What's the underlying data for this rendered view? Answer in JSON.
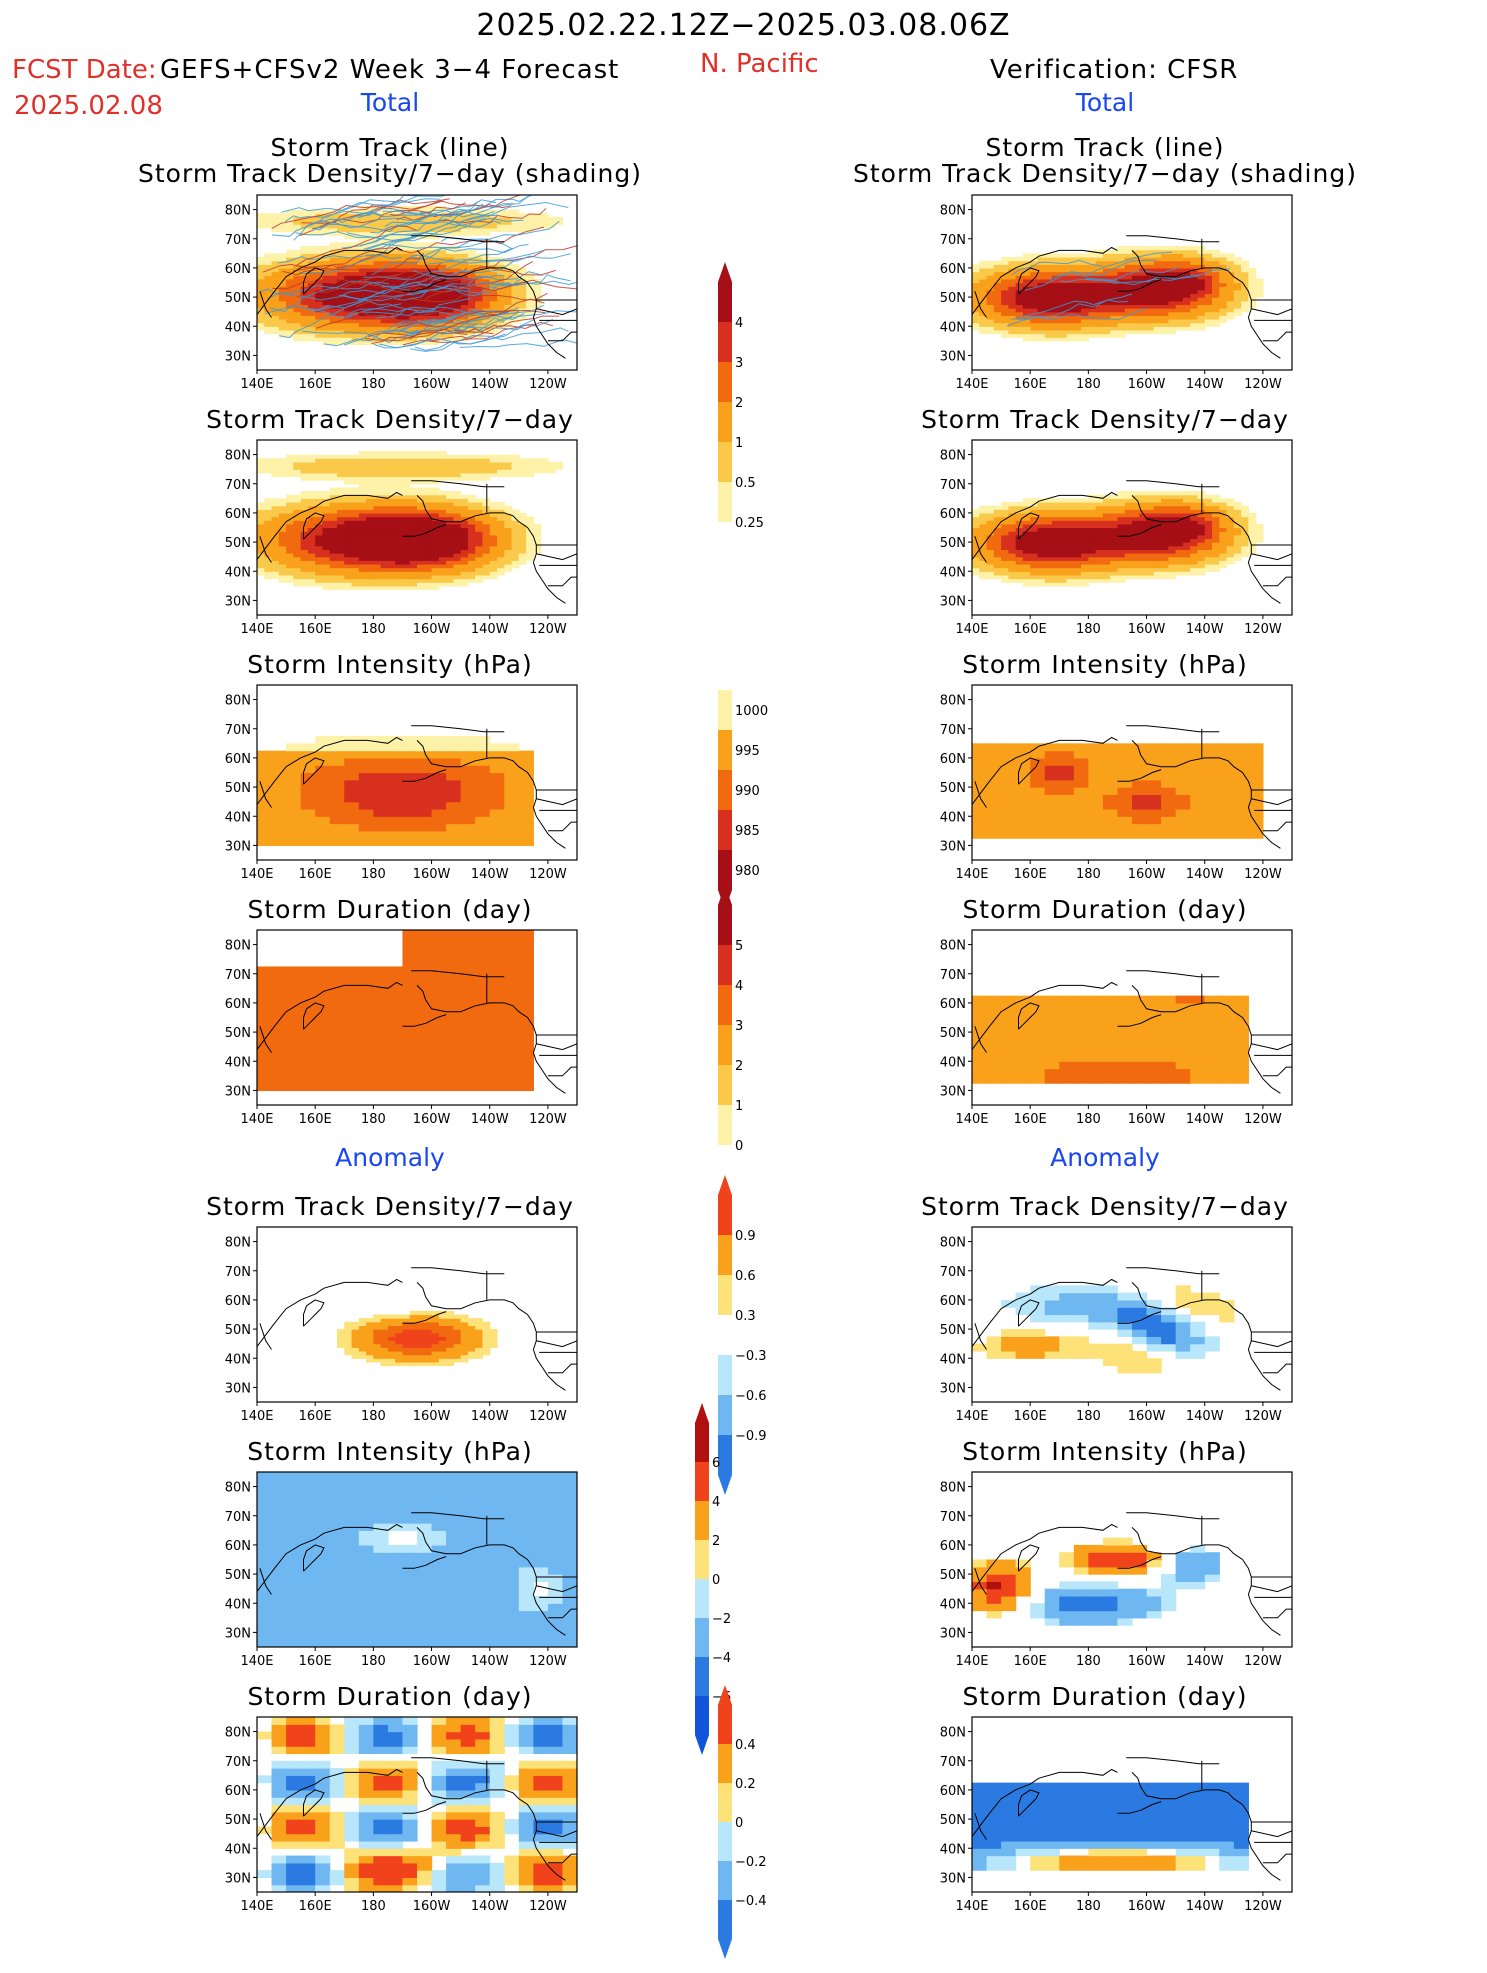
{
  "header": {
    "time_range": "2025.02.22.12Z−2025.03.08.06Z",
    "fcst_label": "FCST Date:",
    "model": "GEFS+CFSv2 Week 3−4 Forecast",
    "fcst_date": "2025.02.08",
    "region": "N. Pacific",
    "verification": "Verification: CFSR"
  },
  "sections": {
    "total_left": "Total",
    "total_right": "Total",
    "anomaly_left": "Anomaly",
    "anomaly_right": "Anomaly"
  },
  "axes": {
    "lon_ticks": [
      "140E",
      "160E",
      "180",
      "160W",
      "140W",
      "120W"
    ],
    "lat_ticks": [
      "80N",
      "70N",
      "60N",
      "50N",
      "40N",
      "30N"
    ]
  },
  "panels": {
    "track_left_l1": "Storm Track (line)",
    "track_left_l2": "Storm Track Density/7−day (shading)",
    "track_right_l1": "Storm Track (line)",
    "track_right_l2": "Storm Track Density/7−day (shading)",
    "density_left": "Storm Track Density/7−day",
    "density_right": "Storm Track Density/7−day",
    "intensity_left": "Storm Intensity (hPa)",
    "intensity_right": "Storm Intensity (hPa)",
    "duration_left": "Storm Duration (day)",
    "duration_right": "Storm Duration (day)",
    "anom_density_left": "Storm Track Density/7−day",
    "anom_density_right": "Storm Track Density/7−day",
    "anom_intensity_left": "Storm Intensity (hPa)",
    "anom_intensity_right": "Storm Intensity (hPa)",
    "anom_duration_left": "Storm Duration (day)",
    "anom_duration_right": "Storm Duration (day)"
  },
  "colorbars": {
    "density": {
      "labels": [
        "4",
        "3",
        "2",
        "1",
        "0.5",
        "0.25"
      ],
      "colors": [
        "#a50f15",
        "#d7301f",
        "#f26a0f",
        "#f9a11b",
        "#fbc94a",
        "#fdf2a8"
      ]
    },
    "intensity": {
      "labels": [
        "1000",
        "995",
        "990",
        "985",
        "980"
      ],
      "colors": [
        "#fdf2a8",
        "#f9a11b",
        "#f26a0f",
        "#d7301f",
        "#a50f15"
      ]
    },
    "duration": {
      "labels": [
        "5",
        "4",
        "3",
        "2",
        "1",
        "0"
      ],
      "colors": [
        "#a50f15",
        "#d7301f",
        "#f26a0f",
        "#f9a11b",
        "#fbc94a",
        "#fdf2a8"
      ]
    },
    "anom_density": {
      "labels": [
        "0.9",
        "0.6",
        "0.3",
        "−0.3",
        "−0.6",
        "−0.9"
      ],
      "colors": [
        "#f0431c",
        "#f9a11b",
        "#fde27a",
        "#ffffff",
        "#b8e6fa",
        "#6fb7f0",
        "#2a7ae2"
      ]
    },
    "anom_intensity": {
      "labels": [
        "6",
        "4",
        "2",
        "0",
        "−2",
        "−4",
        "−6"
      ],
      "colors": [
        "#b0100f",
        "#f0431c",
        "#f9a11b",
        "#fde27a",
        "#b8e6fa",
        "#6fb7f0",
        "#2a7ae2",
        "#1155dd"
      ]
    },
    "anom_duration": {
      "labels": [
        "0.4",
        "0.2",
        "0",
        "−0.2",
        "−0.4"
      ],
      "colors": [
        "#f0431c",
        "#f9a11b",
        "#fde27a",
        "#b8e6fa",
        "#6fb7f0",
        "#2a7ae2"
      ]
    }
  }
}
